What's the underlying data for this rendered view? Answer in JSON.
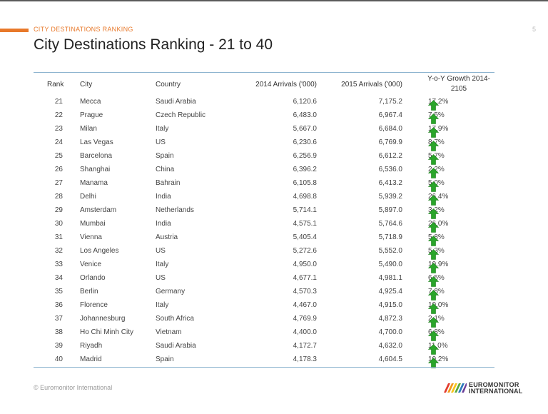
{
  "header": {
    "section_label": "CITY DESTINATIONS RANKING",
    "page_number": "5",
    "title": "City Destinations Ranking - 21 to 40"
  },
  "table": {
    "columns": [
      "Rank",
      "City",
      "Country",
      "2014 Arrivals ('000)",
      "2015 Arrivals ('000)",
      "Y-o-Y Growth 2014-2105"
    ],
    "rows": [
      {
        "rank": "21",
        "city": "Mecca",
        "country": "Saudi Arabia",
        "a14": "6,120.6",
        "a15": "7,175.2",
        "growth": "17.2%"
      },
      {
        "rank": "22",
        "city": "Prague",
        "country": "Czech Republic",
        "a14": "6,483.0",
        "a15": "6,967.4",
        "growth": "7.5%"
      },
      {
        "rank": "23",
        "city": "Milan",
        "country": "Italy",
        "a14": "5,667.0",
        "a15": "6,684.0",
        "growth": "17.9%"
      },
      {
        "rank": "24",
        "city": "Las Vegas",
        "country": "US",
        "a14": "6,230.6",
        "a15": "6,769.9",
        "growth": "8.7%"
      },
      {
        "rank": "25",
        "city": "Barcelona",
        "country": "Spain",
        "a14": "6,256.9",
        "a15": "6,612.2",
        "growth": "5.7%"
      },
      {
        "rank": "26",
        "city": "Shanghai",
        "country": "China",
        "a14": "6,396.2",
        "a15": "6,536.0",
        "growth": "2.2%"
      },
      {
        "rank": "27",
        "city": "Manama",
        "country": "Bahrain",
        "a14": "6,105.8",
        "a15": "6,413.2",
        "growth": "5.0%"
      },
      {
        "rank": "28",
        "city": "Delhi",
        "country": "India",
        "a14": "4,698.8",
        "a15": "5,939.2",
        "growth": "26.4%"
      },
      {
        "rank": "29",
        "city": "Amsterdam",
        "country": "Netherlands",
        "a14": "5,714.1",
        "a15": "5,897.0",
        "growth": "3.2%"
      },
      {
        "rank": "30",
        "city": "Mumbai",
        "country": "India",
        "a14": "4,575.1",
        "a15": "5,764.6",
        "growth": "26.0%"
      },
      {
        "rank": "31",
        "city": "Vienna",
        "country": "Austria",
        "a14": "5,405.4",
        "a15": "5,718.9",
        "growth": "5.8%"
      },
      {
        "rank": "32",
        "city": "Los Angeles",
        "country": "US",
        "a14": "5,272.6",
        "a15": "5,552.0",
        "growth": "5.3%"
      },
      {
        "rank": "33",
        "city": "Venice",
        "country": "Italy",
        "a14": "4,950.0",
        "a15": "5,490.0",
        "growth": "10.9%"
      },
      {
        "rank": "34",
        "city": "Orlando",
        "country": "US",
        "a14": "4,677.1",
        "a15": "4,981.1",
        "growth": "6.5%"
      },
      {
        "rank": "35",
        "city": "Berlin",
        "country": "Germany",
        "a14": "4,570.3",
        "a15": "4,925.4",
        "growth": "7.8%"
      },
      {
        "rank": "36",
        "city": "Florence",
        "country": "Italy",
        "a14": "4,467.0",
        "a15": "4,915.0",
        "growth": "10.0%"
      },
      {
        "rank": "37",
        "city": "Johannesburg",
        "country": "South Africa",
        "a14": "4,769.9",
        "a15": "4,872.3",
        "growth": "2.1%"
      },
      {
        "rank": "38",
        "city": "Ho Chi Minh City",
        "country": "Vietnam",
        "a14": "4,400.0",
        "a15": "4,700.0",
        "growth": "6.8%"
      },
      {
        "rank": "39",
        "city": "Riyadh",
        "country": "Saudi Arabia",
        "a14": "4,172.7",
        "a15": "4,632.0",
        "growth": "11.0%"
      },
      {
        "rank": "40",
        "city": "Madrid",
        "country": "Spain",
        "a14": "4,178.3",
        "a15": "4,604.5",
        "growth": "10.2%"
      }
    ],
    "growth_icon": "green-up-arrow-icon",
    "arrow_color": "#2aa52a"
  },
  "footer": {
    "copyright": "© Euromonitor International",
    "logo_line1": "EUROMONITOR",
    "logo_line2": "INTERNATIONAL"
  },
  "colors": {
    "accent": "#e8792b",
    "rule": "#8eb4cf"
  }
}
